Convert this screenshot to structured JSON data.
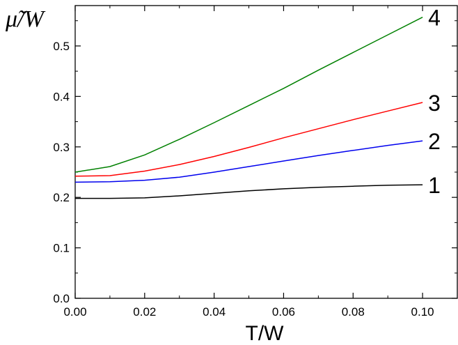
{
  "chart_data": {
    "type": "line",
    "xlabel": "T/W",
    "ylabel": "μ̃/W",
    "xlim": [
      0.0,
      0.11
    ],
    "ylim": [
      0.0,
      0.58
    ],
    "grid": false,
    "legend": "none",
    "x_ticks": [
      "0.00",
      "0.02",
      "0.04",
      "0.06",
      "0.08",
      "0.10"
    ],
    "y_ticks": [
      "0.0",
      "0.1",
      "0.2",
      "0.3",
      "0.4",
      "0.5"
    ],
    "series": [
      {
        "name": "1",
        "color": "#000000",
        "x": [
          0.0,
          0.01,
          0.02,
          0.03,
          0.04,
          0.05,
          0.06,
          0.07,
          0.08,
          0.09,
          0.1
        ],
        "y": [
          0.198,
          0.198,
          0.199,
          0.203,
          0.208,
          0.213,
          0.217,
          0.22,
          0.222,
          0.224,
          0.225
        ]
      },
      {
        "name": "2",
        "color": "#0000ee",
        "x": [
          0.0,
          0.01,
          0.02,
          0.03,
          0.04,
          0.05,
          0.06,
          0.07,
          0.08,
          0.09,
          0.1
        ],
        "y": [
          0.23,
          0.231,
          0.234,
          0.24,
          0.25,
          0.261,
          0.272,
          0.283,
          0.293,
          0.303,
          0.312
        ]
      },
      {
        "name": "3",
        "color": "#ff0000",
        "x": [
          0.0,
          0.01,
          0.02,
          0.03,
          0.04,
          0.05,
          0.06,
          0.07,
          0.08,
          0.09,
          0.1
        ],
        "y": [
          0.242,
          0.243,
          0.252,
          0.265,
          0.281,
          0.299,
          0.318,
          0.336,
          0.354,
          0.371,
          0.388
        ]
      },
      {
        "name": "4",
        "color": "#008000",
        "x": [
          0.0,
          0.01,
          0.02,
          0.03,
          0.04,
          0.05,
          0.06,
          0.07,
          0.08,
          0.09,
          0.1
        ],
        "y": [
          0.25,
          0.261,
          0.284,
          0.315,
          0.348,
          0.382,
          0.416,
          0.452,
          0.487,
          0.522,
          0.557
        ]
      }
    ]
  }
}
